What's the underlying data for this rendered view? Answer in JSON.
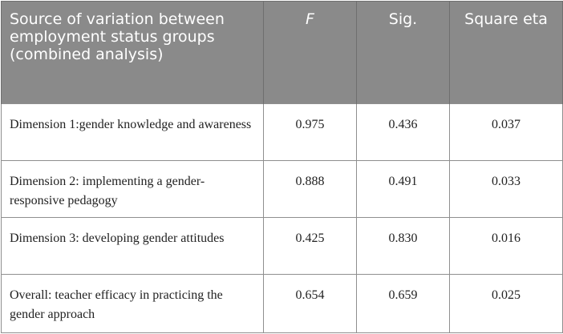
{
  "table": {
    "headers": [
      "Source of variation between employment status groups (combined analysis)",
      "F",
      "Sig.",
      "Square eta"
    ],
    "rows": [
      {
        "label": "Dimension 1:gender knowledge and awareness",
        "f": "0.975",
        "sig": "0.436",
        "eta": "0.037"
      },
      {
        "label": "Dimension 2: implementing a gender-responsive pedagogy",
        "f": "0.888",
        "sig": "0.491",
        "eta": "0.033"
      },
      {
        "label": "Dimension 3: developing gender attitudes",
        "f": "0.425",
        "sig": "0.830",
        "eta": "0.016"
      },
      {
        "label": "Overall: teacher efficacy in practicing the gender approach",
        "f": "0.654",
        "sig": "0.659",
        "eta": "0.025"
      }
    ]
  }
}
